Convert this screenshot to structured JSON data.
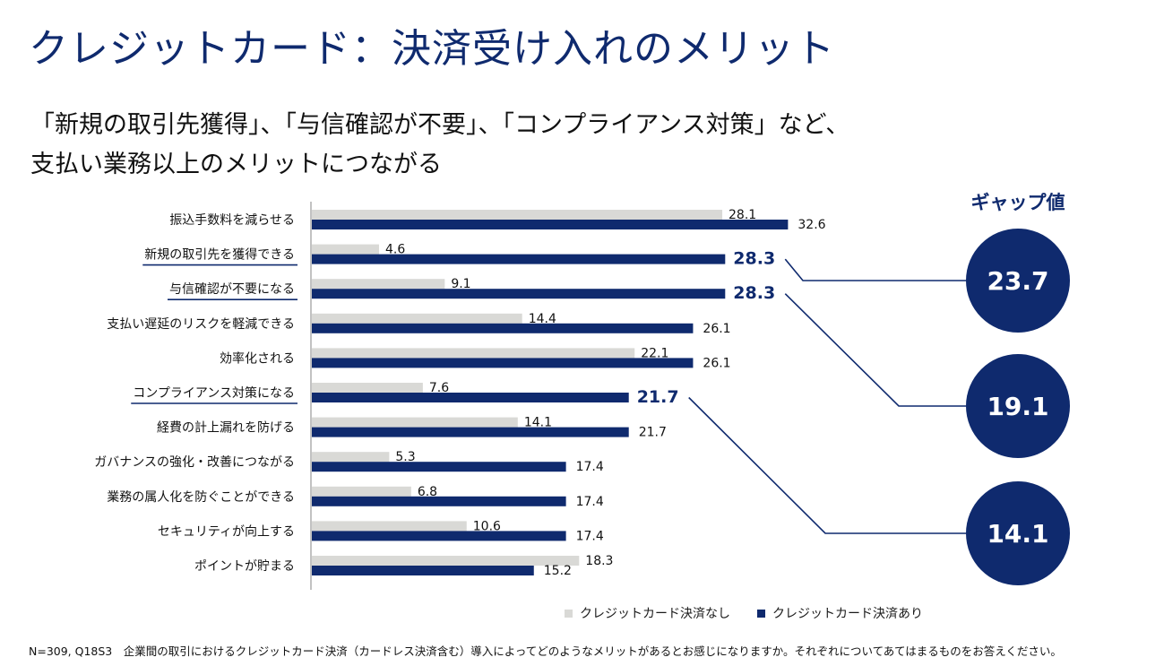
{
  "title": "クレジットカード：決済受け入れのメリット",
  "subtitle": {
    "line1": "「新規の取引先獲得」、「与信確認が不要」、「コンプライアンス対策」など、",
    "line2": "支払い業務以上のメリットにつながる"
  },
  "gap": {
    "title": "ギャップ値",
    "values": [
      {
        "value": "23.7",
        "category_index": 1
      },
      {
        "value": "19.1",
        "category_index": 2
      },
      {
        "value": "14.1",
        "category_index": 5
      }
    ]
  },
  "legend": {
    "without": "クレジットカード決済なし",
    "with": "クレジットカード決済あり"
  },
  "footnote": "N=309, Q18S3　企業間の取引におけるクレジットカード決済（カードレス決済含む）導入によってどのようなメリットがあるとお感じになりますか。それぞれについてあてはまるものをお答えください。",
  "colors": {
    "without": "#d9d9d6",
    "with": "#0f2a6e",
    "accent": "#0f2a6e"
  },
  "chart_data": {
    "type": "bar",
    "orientation": "horizontal",
    "categories": [
      "振込手数料を減らせる",
      "新規の取引先を獲得できる",
      "与信確認が不要になる",
      "支払い遅延のリスクを軽減できる",
      "効率化される",
      "コンプライアンス対策になる",
      "経費の計上漏れを防げる",
      "ガバナンスの強化・改善につながる",
      "業務の属人化を防ぐことができる",
      "セキュリティが向上する",
      "ポイントが貯まる"
    ],
    "highlighted": [
      false,
      true,
      true,
      false,
      false,
      true,
      false,
      false,
      false,
      false,
      false
    ],
    "series": [
      {
        "name": "クレジットカード決済なし",
        "values": [
          28.1,
          4.6,
          9.1,
          14.4,
          22.1,
          7.6,
          14.1,
          5.3,
          6.8,
          10.6,
          18.3
        ]
      },
      {
        "name": "クレジットカード決済あり",
        "values": [
          32.6,
          28.3,
          28.3,
          26.1,
          26.1,
          21.7,
          21.7,
          17.4,
          17.4,
          17.4,
          15.2
        ]
      }
    ],
    "xlim": [
      0,
      35
    ],
    "grid": false,
    "legend": "bottom"
  }
}
